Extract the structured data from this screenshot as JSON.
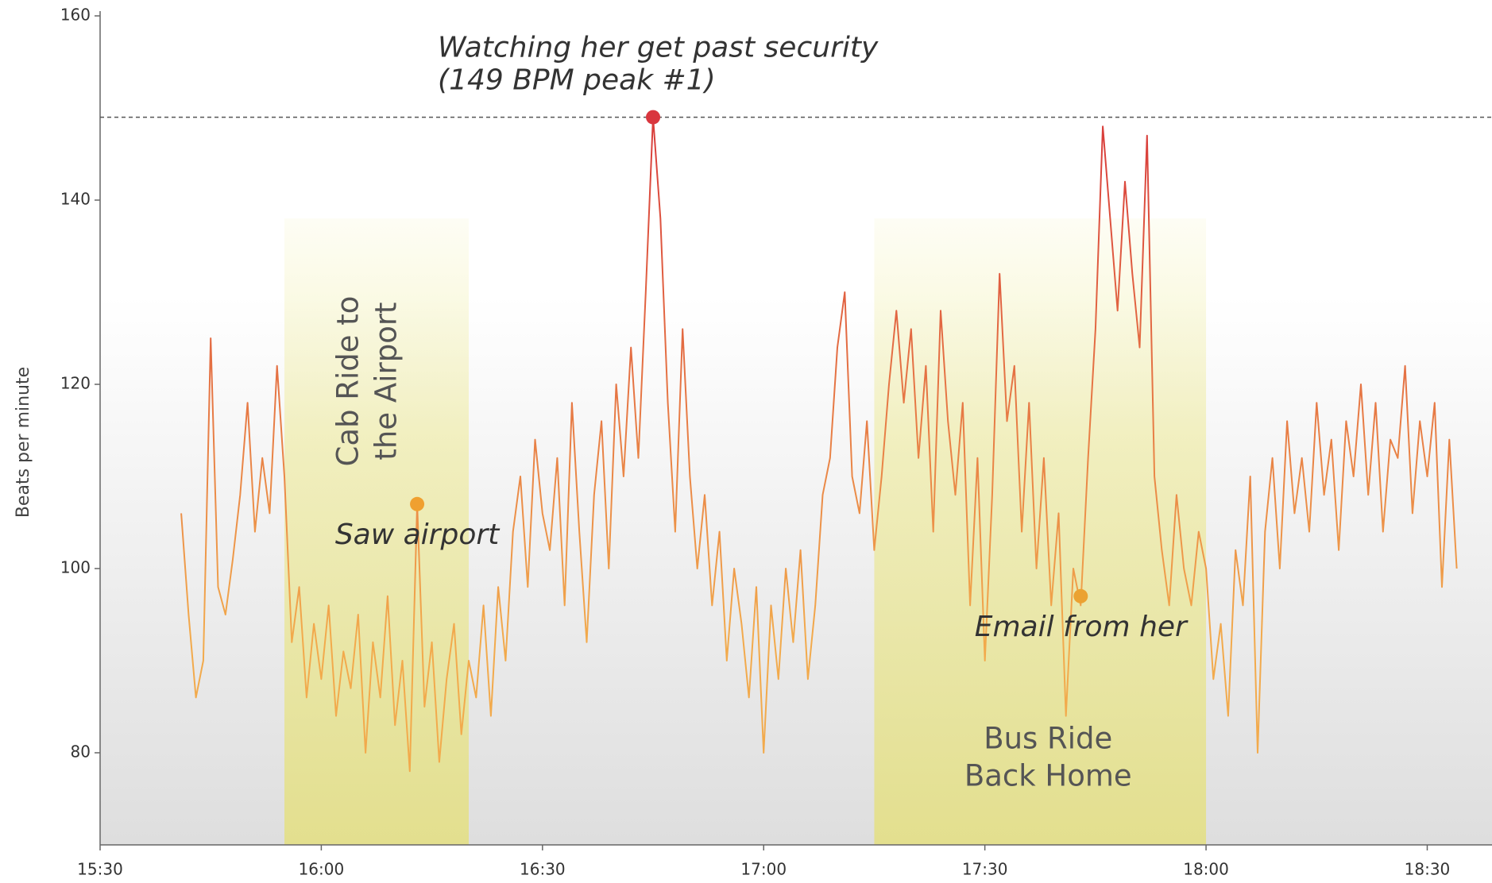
{
  "chart_data": {
    "type": "line",
    "y_label": "Beats per minute",
    "xlim": [
      "15:30",
      "18:39"
    ],
    "xticks": [
      "15:30",
      "16:00",
      "16:30",
      "17:00",
      "17:30",
      "18:00",
      "18:30"
    ],
    "ylim": [
      70,
      160
    ],
    "yticks": [
      80,
      100,
      120,
      140,
      160
    ],
    "line_colors": {
      "low": "#f2aa4c",
      "high": "#d9403c"
    },
    "x": [
      "15:41",
      "15:42",
      "15:43",
      "15:44",
      "15:45",
      "15:46",
      "15:47",
      "15:48",
      "15:49",
      "15:50",
      "15:51",
      "15:52",
      "15:53",
      "15:54",
      "15:55",
      "15:56",
      "15:57",
      "15:58",
      "15:59",
      "16:00",
      "16:01",
      "16:02",
      "16:03",
      "16:04",
      "16:05",
      "16:06",
      "16:07",
      "16:08",
      "16:09",
      "16:10",
      "16:11",
      "16:12",
      "16:13",
      "16:14",
      "16:15",
      "16:16",
      "16:17",
      "16:18",
      "16:19",
      "16:20",
      "16:21",
      "16:22",
      "16:23",
      "16:24",
      "16:25",
      "16:26",
      "16:27",
      "16:28",
      "16:29",
      "16:30",
      "16:31",
      "16:32",
      "16:33",
      "16:34",
      "16:35",
      "16:36",
      "16:37",
      "16:38",
      "16:39",
      "16:40",
      "16:41",
      "16:42",
      "16:43",
      "16:44",
      "16:45",
      "16:46",
      "16:47",
      "16:48",
      "16:49",
      "16:50",
      "16:51",
      "16:52",
      "16:53",
      "16:54",
      "16:55",
      "16:56",
      "16:57",
      "16:58",
      "16:59",
      "17:00",
      "17:01",
      "17:02",
      "17:03",
      "17:04",
      "17:05",
      "17:06",
      "17:07",
      "17:08",
      "17:09",
      "17:10",
      "17:11",
      "17:12",
      "17:13",
      "17:14",
      "17:15",
      "17:16",
      "17:17",
      "17:18",
      "17:19",
      "17:20",
      "17:21",
      "17:22",
      "17:23",
      "17:24",
      "17:25",
      "17:26",
      "17:27",
      "17:28",
      "17:29",
      "17:30",
      "17:31",
      "17:32",
      "17:33",
      "17:34",
      "17:35",
      "17:36",
      "17:37",
      "17:38",
      "17:39",
      "17:40",
      "17:41",
      "17:42",
      "17:43",
      "17:44",
      "17:45",
      "17:46",
      "17:47",
      "17:48",
      "17:49",
      "17:50",
      "17:51",
      "17:52",
      "17:53",
      "17:54",
      "17:55",
      "17:56",
      "17:57",
      "17:58",
      "17:59",
      "18:00",
      "18:01",
      "18:02",
      "18:03",
      "18:04",
      "18:05",
      "18:06",
      "18:07",
      "18:08",
      "18:09",
      "18:10",
      "18:11",
      "18:12",
      "18:13",
      "18:14",
      "18:15",
      "18:16",
      "18:17",
      "18:18",
      "18:19",
      "18:20",
      "18:21",
      "18:22",
      "18:23",
      "18:24",
      "18:25",
      "18:26",
      "18:27",
      "18:28",
      "18:29",
      "18:30",
      "18:31",
      "18:32",
      "18:33",
      "18:34"
    ],
    "values": [
      106,
      95,
      86,
      90,
      125,
      98,
      95,
      101,
      108,
      118,
      104,
      112,
      106,
      122,
      110,
      92,
      98,
      86,
      94,
      88,
      96,
      84,
      91,
      87,
      95,
      80,
      92,
      86,
      97,
      83,
      90,
      78,
      107,
      85,
      92,
      79,
      88,
      94,
      82,
      90,
      86,
      96,
      84,
      98,
      90,
      104,
      110,
      98,
      114,
      106,
      102,
      112,
      96,
      118,
      104,
      92,
      108,
      116,
      100,
      120,
      110,
      124,
      112,
      130,
      149,
      138,
      118,
      104,
      126,
      110,
      100,
      108,
      96,
      104,
      90,
      100,
      94,
      86,
      98,
      80,
      96,
      88,
      100,
      92,
      102,
      88,
      96,
      108,
      112,
      124,
      130,
      110,
      106,
      116,
      102,
      110,
      120,
      128,
      118,
      126,
      112,
      122,
      104,
      128,
      116,
      108,
      118,
      96,
      112,
      90,
      108,
      132,
      116,
      122,
      104,
      118,
      100,
      112,
      96,
      106,
      84,
      100,
      96,
      112,
      126,
      148,
      138,
      128,
      142,
      132,
      124,
      147,
      110,
      102,
      96,
      108,
      100,
      96,
      104,
      100,
      88,
      94,
      84,
      102,
      96,
      110,
      80,
      104,
      112,
      100,
      116,
      106,
      112,
      104,
      118,
      108,
      114,
      102,
      116,
      110,
      120,
      108,
      118,
      104,
      114,
      112,
      122,
      106,
      116,
      110,
      118,
      98,
      114,
      100
    ],
    "regions": [
      {
        "label": [
          "Cab Ride to",
          "the Airport"
        ],
        "start": "15:55",
        "end": "16:20"
      },
      {
        "label": [
          "Bus Ride",
          "Back Home"
        ],
        "start": "17:15",
        "end": "18:00"
      }
    ],
    "annotations": [
      {
        "label": [
          "Watching her get past security",
          "(149 BPM peak #1)"
        ],
        "x": "16:45",
        "y": 149,
        "color": "#d9363e",
        "guide": true
      },
      {
        "label": [
          "Saw airport"
        ],
        "x": "16:13",
        "y": 107,
        "color": "#f0a030"
      },
      {
        "label": [
          "Email from her"
        ],
        "x": "17:43",
        "y": 97,
        "color": "#eba232"
      }
    ]
  }
}
